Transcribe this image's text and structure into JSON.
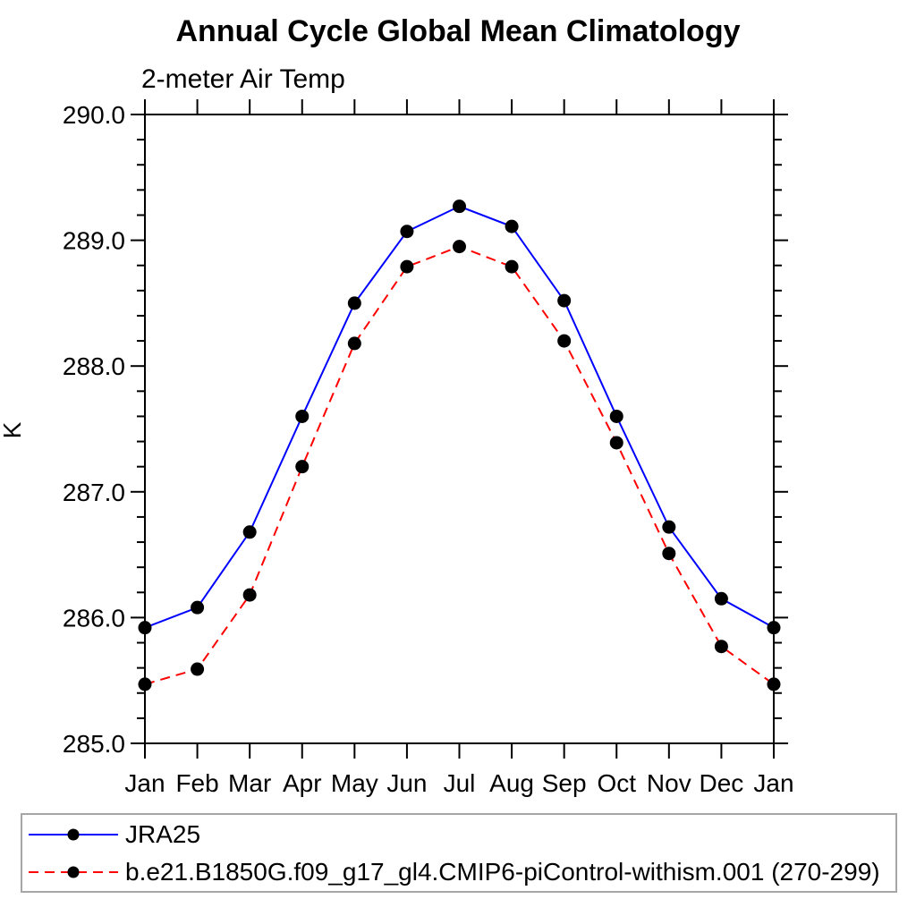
{
  "title": "Annual Cycle Global Mean Climatology",
  "subtitle": "2-meter Air Temp",
  "ylabel": "K",
  "chart_data": {
    "type": "line",
    "categories": [
      "Jan",
      "Feb",
      "Mar",
      "Apr",
      "May",
      "Jun",
      "Jul",
      "Aug",
      "Sep",
      "Oct",
      "Nov",
      "Dec",
      "Jan"
    ],
    "series": [
      {
        "name": "JRA25",
        "color": "#0000ff",
        "line_style": "solid",
        "marker": "filled-circle",
        "marker_color": "#000000",
        "values": [
          285.92,
          286.08,
          286.68,
          287.6,
          288.5,
          289.07,
          289.27,
          289.11,
          288.52,
          287.6,
          286.72,
          286.15,
          285.92
        ]
      },
      {
        "name": "b.e21.B1850G.f09_g17_gl4.CMIP6-piControl-withism.001 (270-299)",
        "color": "#ff0000",
        "line_style": "dashed",
        "marker": "filled-circle",
        "marker_color": "#000000",
        "values": [
          285.47,
          285.59,
          286.18,
          287.2,
          288.18,
          288.79,
          288.95,
          288.79,
          288.2,
          287.39,
          286.51,
          285.77,
          285.47
        ]
      }
    ],
    "ylim": [
      285.0,
      290.0
    ],
    "ytick_major_step": 1.0,
    "ytick_minor_step": 0.2,
    "ytick_labels": [
      "290.0",
      "289.0",
      "288.0",
      "287.0",
      "286.0",
      "285.0"
    ],
    "grid": false,
    "legend_position": "bottom",
    "frame_color": "#000000",
    "legend_border_color": "#a6a6a6"
  }
}
